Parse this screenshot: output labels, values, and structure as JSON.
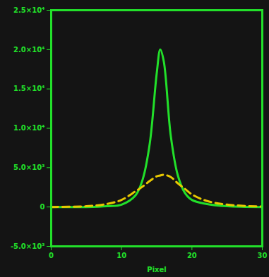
{
  "chart_data": {
    "type": "line",
    "x_label": "Pixel",
    "x": [
      0,
      5,
      8,
      10,
      12,
      13,
      14,
      15,
      15.5,
      16,
      17,
      18,
      19,
      20,
      22,
      25,
      30
    ],
    "series": [
      {
        "color": "#22e02a",
        "line_style": "solid",
        "values": [
          0,
          0,
          100,
          300,
          1500,
          3500,
          8000,
          17000,
          20000,
          18500,
          9000,
          4000,
          1800,
          900,
          400,
          100,
          0
        ]
      },
      {
        "color": "#e8c800",
        "line_style": "dashed",
        "values": [
          0,
          100,
          400,
          900,
          2000,
          2600,
          3300,
          3900,
          4000,
          4100,
          3800,
          3000,
          2300,
          1600,
          800,
          300,
          50
        ]
      }
    ],
    "xlim": [
      0,
      30
    ],
    "xticks": [
      0,
      10,
      20,
      30
    ],
    "ylim": [
      -5000,
      25000
    ],
    "yticks": [
      {
        "value": -5000,
        "label": "-5.0×10³"
      },
      0,
      {
        "value": 5000,
        "label": "5.0×10³"
      },
      {
        "value": 10000,
        "label": "1.0×10⁴"
      },
      {
        "value": 15000,
        "label": "1.5×10⁴"
      },
      {
        "value": 20000,
        "label": "2.0×10⁴"
      },
      {
        "value": 25000,
        "label": "2.5×10⁴"
      }
    ]
  }
}
